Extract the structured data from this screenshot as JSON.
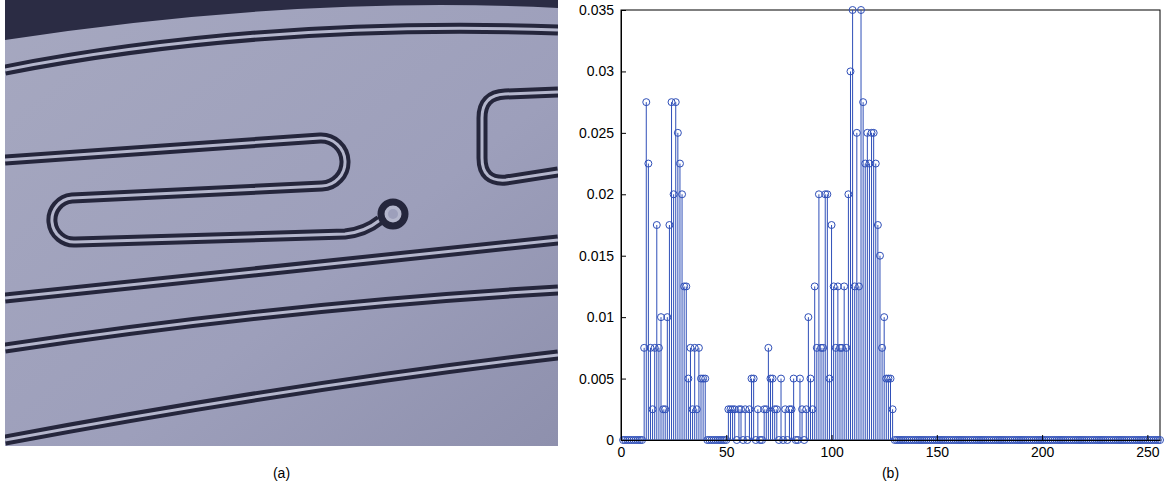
{
  "image": {
    "caption": "(a)"
  },
  "chart_data": {
    "type": "stem",
    "caption": "(b)",
    "color": "#2f4fb8",
    "marker": "circle",
    "xlim": [
      0,
      256
    ],
    "xticks": [
      0,
      50,
      100,
      150,
      200,
      250
    ],
    "ylim": [
      0,
      0.035
    ],
    "yticks": [
      0,
      0.005,
      0.01,
      0.015,
      0.02,
      0.025,
      0.03,
      0.035
    ],
    "x": [
      1,
      2,
      3,
      4,
      5,
      6,
      7,
      8,
      9,
      10,
      11,
      12,
      13,
      14,
      15,
      16,
      17,
      18,
      19,
      20,
      21,
      22,
      23,
      24,
      25,
      26,
      27,
      28,
      29,
      30,
      31,
      32,
      33,
      34,
      35,
      36,
      37,
      38,
      39,
      40,
      41,
      42,
      43,
      44,
      45,
      46,
      47,
      48,
      49,
      50,
      51,
      52,
      53,
      54,
      55,
      56,
      57,
      58,
      59,
      60,
      61,
      62,
      63,
      64,
      65,
      66,
      67,
      68,
      69,
      70,
      71,
      72,
      73,
      74,
      75,
      76,
      77,
      78,
      79,
      80,
      81,
      82,
      83,
      84,
      85,
      86,
      87,
      88,
      89,
      90,
      91,
      92,
      93,
      94,
      95,
      96,
      97,
      98,
      99,
      100,
      101,
      102,
      103,
      104,
      105,
      106,
      107,
      108,
      109,
      110,
      111,
      112,
      113,
      114,
      115,
      116,
      117,
      118,
      119,
      120,
      121,
      122,
      123,
      124,
      125,
      126,
      127,
      128,
      129,
      130,
      131,
      132,
      133,
      134,
      135,
      136,
      137,
      138,
      139,
      140,
      141,
      142,
      143,
      144,
      145,
      146,
      147,
      148,
      149,
      150,
      151,
      152,
      153,
      154,
      155,
      156,
      157,
      158,
      159,
      160,
      161,
      162,
      163,
      164,
      165,
      166,
      167,
      168,
      169,
      170,
      171,
      172,
      173,
      174,
      175,
      176,
      177,
      178,
      179,
      180,
      181,
      182,
      183,
      184,
      185,
      186,
      187,
      188,
      189,
      190,
      191,
      192,
      193,
      194,
      195,
      196,
      197,
      198,
      199,
      200,
      201,
      202,
      203,
      204,
      205,
      206,
      207,
      208,
      209,
      210,
      211,
      212,
      213,
      214,
      215,
      216,
      217,
      218,
      219,
      220,
      221,
      222,
      223,
      224,
      225,
      226,
      227,
      228,
      229,
      230,
      231,
      232,
      233,
      234,
      235,
      236,
      237,
      238,
      239,
      240,
      241,
      242,
      243,
      244,
      245,
      246,
      247,
      248,
      249,
      250,
      251,
      252,
      253,
      254,
      255,
      256
    ],
    "values": [
      0,
      0,
      0,
      0,
      0,
      0,
      0,
      0,
      0,
      0,
      0.0075,
      0.0275,
      0.0225,
      0.0075,
      0.0025,
      0.0075,
      0.0175,
      0.0075,
      0.01,
      0.0025,
      0.0025,
      0.01,
      0.0175,
      0.0275,
      0.02,
      0.0275,
      0.025,
      0.0225,
      0.02,
      0.0125,
      0.0125,
      0.005,
      0.0075,
      0.0025,
      0.0075,
      0.0025,
      0.0075,
      0.005,
      0.005,
      0.005,
      0,
      0,
      0,
      0,
      0,
      0,
      0,
      0,
      0,
      0,
      0.0025,
      0.0025,
      0.0025,
      0.0025,
      0,
      0.0025,
      0.0025,
      0,
      0.0025,
      0,
      0.0025,
      0.005,
      0.005,
      0,
      0.0025,
      0,
      0,
      0.0025,
      0.0025,
      0.0075,
      0.005,
      0.005,
      0.0025,
      0.0025,
      0,
      0.005,
      0,
      0.0025,
      0,
      0.0025,
      0.0025,
      0.005,
      0,
      0,
      0.005,
      0.0025,
      0,
      0.0025,
      0.01,
      0.005,
      0.0025,
      0.0125,
      0.0075,
      0.02,
      0.0075,
      0.0075,
      0.02,
      0.02,
      0.005,
      0.0175,
      0.0125,
      0.0075,
      0.0125,
      0.0075,
      0.0075,
      0.0125,
      0.0075,
      0.02,
      0.03,
      0.035,
      0.0125,
      0.025,
      0.0125,
      0.035,
      0.0275,
      0.0225,
      0.025,
      0.0225,
      0.025,
      0.025,
      0.0225,
      0.0175,
      0.015,
      0.0075,
      0.01,
      0.005,
      0.005,
      0.005,
      0.0025,
      0,
      0,
      0,
      0,
      0,
      0,
      0,
      0,
      0,
      0,
      0,
      0,
      0,
      0,
      0,
      0,
      0,
      0,
      0,
      0,
      0,
      0,
      0,
      0,
      0,
      0,
      0,
      0,
      0,
      0,
      0,
      0,
      0,
      0,
      0,
      0,
      0,
      0,
      0,
      0,
      0,
      0,
      0,
      0,
      0,
      0,
      0,
      0,
      0,
      0,
      0,
      0,
      0,
      0,
      0,
      0,
      0,
      0,
      0,
      0,
      0,
      0,
      0,
      0,
      0,
      0,
      0,
      0,
      0,
      0,
      0,
      0,
      0,
      0,
      0,
      0,
      0,
      0,
      0,
      0,
      0,
      0,
      0,
      0,
      0,
      0,
      0,
      0,
      0,
      0,
      0,
      0,
      0,
      0,
      0,
      0,
      0,
      0,
      0,
      0,
      0,
      0,
      0,
      0,
      0,
      0,
      0,
      0,
      0,
      0,
      0,
      0,
      0,
      0,
      0,
      0,
      0,
      0,
      0,
      0,
      0,
      0,
      0,
      0,
      0,
      0,
      0
    ]
  }
}
